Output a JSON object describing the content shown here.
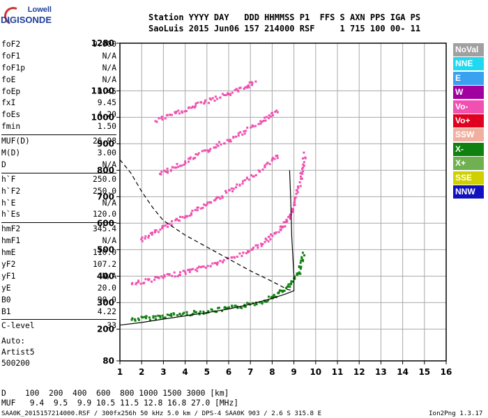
{
  "logo": {
    "top": "Lowell",
    "bottom": "DIGISONDE"
  },
  "header": {
    "line1": "Station YYYY DAY   DDD HHMMSS P1  FFS S AXN PPS IGA PS",
    "line2": "SaoLuis 2015 Jun06 157 214000 RSF     1 715 100 00- 11"
  },
  "params": {
    "group1": [
      {
        "label": "foF2",
        "value": "9.000"
      },
      {
        "label": "foF1",
        "value": "N/A"
      },
      {
        "label": "foF1p",
        "value": "N/A"
      },
      {
        "label": "foE",
        "value": "N/A"
      },
      {
        "label": "foEp",
        "value": "0.45"
      },
      {
        "label": "fxI",
        "value": "9.45"
      },
      {
        "label": "foEs",
        "value": "4.20"
      },
      {
        "label": "fmin",
        "value": "1.50"
      }
    ],
    "group2": [
      {
        "label": "MUF(D)",
        "value": "26.98"
      },
      {
        "label": "M(D)",
        "value": "3.00"
      },
      {
        "label": "D",
        "value": "N/A"
      }
    ],
    "group3": [
      {
        "label": "h`F",
        "value": "250.0"
      },
      {
        "label": "h`F2",
        "value": "250.0"
      },
      {
        "label": "h`E",
        "value": "N/A"
      },
      {
        "label": "h`Es",
        "value": "120.0"
      }
    ],
    "group4": [
      {
        "label": "hmF2",
        "value": "345.4"
      },
      {
        "label": "hmF1",
        "value": "N/A"
      },
      {
        "label": "hmE",
        "value": "110.0"
      },
      {
        "label": "yF2",
        "value": "107.2"
      },
      {
        "label": "yF1",
        "value": "N/A"
      },
      {
        "label": "yE",
        "value": "20.0"
      },
      {
        "label": "B0",
        "value": "90.0"
      },
      {
        "label": "B1",
        "value": "4.22"
      }
    ],
    "group5": [
      {
        "label": "C-level",
        "value": "33"
      }
    ]
  },
  "auto": {
    "line1": "Auto:",
    "line2": "Artist5",
    "line3": "500200"
  },
  "footer": {
    "d_row": "D    100  200  400  600  800 1000 1500 3000 [km]",
    "muf_row": "MUF   9.4  9.5  9.9 10.5 11.5 12.8 16.8 27.0 [MHz]",
    "file_row": "SAA0K_2015157214000.RSF / 300fx256h 50 kHz 5.0 km / DPS-4 SAA0K 903 / 2.6 S 315.8 E",
    "version": "Ion2Png 1.3.17"
  },
  "legend": [
    {
      "label": "NoVal",
      "color": "#a0a0a0"
    },
    {
      "label": "NNE",
      "color": "#20d8f0"
    },
    {
      "label": "E",
      "color": "#3aa0f0"
    },
    {
      "label": "W",
      "color": "#a000a0"
    },
    {
      "label": "Vo-",
      "color": "#f050b0"
    },
    {
      "label": "Vo+",
      "color": "#e00020"
    },
    {
      "label": "SSW",
      "color": "#f0b0a0"
    },
    {
      "label": "X-",
      "color": "#108010"
    },
    {
      "label": "X+",
      "color": "#70b050"
    },
    {
      "label": "SSE",
      "color": "#d0d000"
    },
    {
      "label": "NNW",
      "color": "#1010c0"
    }
  ],
  "chart_data": {
    "type": "scatter",
    "xlim": [
      1,
      16
    ],
    "ylim": [
      80,
      1280
    ],
    "x_ticks": [
      "1",
      "2",
      "3",
      "4",
      "5",
      "6",
      "7",
      "8",
      "9",
      "10",
      "11",
      "12",
      "13",
      "14",
      "15",
      "16"
    ],
    "y_ticks": [
      "80",
      "200",
      "300",
      "400",
      "500",
      "600",
      "700",
      "800",
      "900",
      "1000",
      "1100",
      "1280"
    ],
    "grid": true,
    "traces": [
      {
        "name": "",
        "color": "#108010",
        "points": [
          [
            1.5,
            240
          ],
          [
            2.5,
            248
          ],
          [
            3.5,
            258
          ],
          [
            4.5,
            266
          ],
          [
            5.5,
            276
          ],
          [
            6.5,
            289
          ],
          [
            7.5,
            308
          ],
          [
            8.2,
            335
          ],
          [
            8.8,
            370
          ],
          [
            9.2,
            420
          ],
          [
            9.4,
            495
          ]
        ]
      },
      {
        "name": "",
        "color": "#f050b0",
        "points": [
          [
            1.5,
            375
          ],
          [
            2.5,
            392
          ],
          [
            3.5,
            410
          ],
          [
            4.5,
            430
          ],
          [
            5.5,
            455
          ],
          [
            6.5,
            485
          ],
          [
            7.5,
            525
          ],
          [
            8.2,
            570
          ],
          [
            8.7,
            620
          ],
          [
            9.0,
            680
          ],
          [
            9.3,
            780
          ],
          [
            9.45,
            870
          ]
        ]
      },
      {
        "name": "",
        "color": "#f050b0",
        "points": [
          [
            1.9,
            540
          ],
          [
            2.8,
            580
          ],
          [
            3.7,
            620
          ],
          [
            4.6,
            660
          ],
          [
            5.5,
            700
          ],
          [
            6.5,
            750
          ],
          [
            7.5,
            810
          ],
          [
            8.3,
            865
          ]
        ]
      },
      {
        "name": "",
        "color": "#f050b0",
        "points": [
          [
            2.8,
            790
          ],
          [
            3.6,
            820
          ],
          [
            4.5,
            860
          ],
          [
            5.5,
            900
          ],
          [
            6.5,
            940
          ],
          [
            7.5,
            990
          ],
          [
            8.2,
            1030
          ]
        ]
      },
      {
        "name": "",
        "color": "#f050b0",
        "points": [
          [
            2.6,
            990
          ],
          [
            3.6,
            1020
          ],
          [
            4.5,
            1050
          ],
          [
            5.5,
            1080
          ],
          [
            6.5,
            1110
          ],
          [
            7.2,
            1140
          ]
        ]
      }
    ],
    "profile_solid": [
      [
        1,
        215
      ],
      [
        2,
        225
      ],
      [
        3,
        238
      ],
      [
        4,
        250
      ],
      [
        5,
        262
      ],
      [
        6,
        276
      ],
      [
        7,
        294
      ],
      [
        8,
        316
      ],
      [
        8.6,
        332
      ],
      [
        9.0,
        345
      ],
      [
        9.0,
        400
      ],
      [
        8.9,
        550
      ],
      [
        8.85,
        700
      ],
      [
        8.8,
        800
      ]
    ],
    "profile_dashed": [
      [
        1,
        840
      ],
      [
        1.5,
        790
      ],
      [
        2,
        720
      ],
      [
        2.5,
        660
      ],
      [
        3,
        610
      ],
      [
        4,
        555
      ],
      [
        5,
        510
      ],
      [
        6,
        465
      ],
      [
        7,
        420
      ],
      [
        8,
        380
      ],
      [
        8.7,
        350
      ],
      [
        9,
        345
      ]
    ]
  }
}
